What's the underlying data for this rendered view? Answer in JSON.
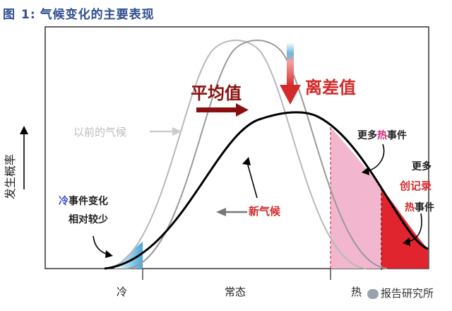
{
  "header": {
    "prefix": "图",
    "number": "1:",
    "text": "气候变化的主要表现"
  },
  "axis": {
    "y_label": "发生概率",
    "x_ticks": [
      "冷",
      "常态",
      "热"
    ]
  },
  "labels": {
    "mean": "平均值",
    "variance": "离差值",
    "previous_climate": "以前的气候",
    "new_climate": "新气候",
    "cold_line1_hl": "冷",
    "cold_line1_rest": "事件变化",
    "cold_line2": "相对较少",
    "hot1_a": "更多",
    "hot1_hl": "热",
    "hot1_b": "事件",
    "hot2_line1": "更多",
    "hot2_line2": "创记录",
    "hot2_line3_hl": "热",
    "hot2_line3_rest": "事件"
  },
  "watermark": "报告研究所",
  "colors": {
    "title": "#2f4f8f",
    "red": "#d42a2a",
    "dark_red": "#8a1010",
    "pink": "#f2b7cf",
    "cold": "#4aa8d8",
    "grey": "#bbbbbb",
    "black": "#000000"
  }
}
